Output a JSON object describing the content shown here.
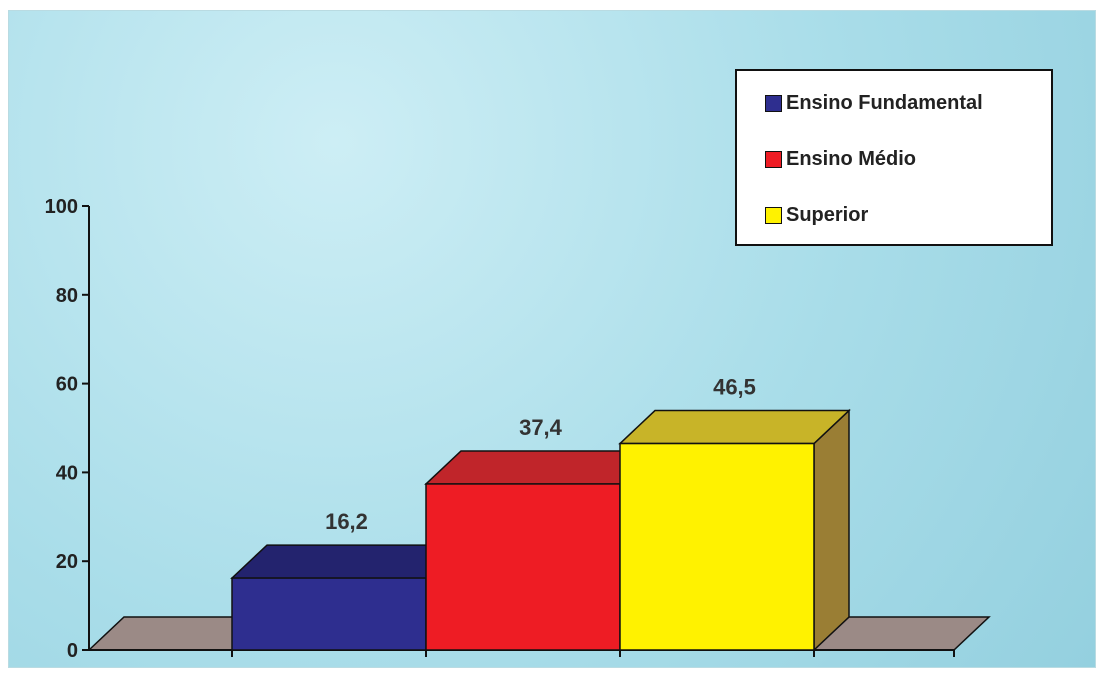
{
  "chart_data": {
    "type": "bar",
    "categories": [
      "Ensino Fundamental",
      "Ensino Médio",
      "Superior"
    ],
    "values": [
      16.2,
      37.4,
      46.5
    ],
    "value_labels": [
      "16,2",
      "37,4",
      "46,5"
    ],
    "colors": {
      "front": [
        "#2e2e8f",
        "#ee1c24",
        "#fff200"
      ],
      "top": [
        "#23236e",
        "#c0252a",
        "#c8b428"
      ],
      "side": [
        "#1e1e5c",
        "#8a1a1e",
        "#9a7e34"
      ],
      "floor": "#9b8a86"
    },
    "ylim": [
      0,
      100
    ],
    "yticks": [
      0,
      20,
      40,
      60,
      80,
      100
    ],
    "title": "",
    "xlabel": "",
    "ylabel": "",
    "legend": {
      "position": "top-right",
      "entries": [
        {
          "label": "Ensino Fundamental",
          "color": "#2e2e8f"
        },
        {
          "label": "Ensino Médio",
          "color": "#ee1c24"
        },
        {
          "label": "Superior",
          "color": "#fff200"
        }
      ]
    },
    "three_d": true,
    "grid": false
  }
}
